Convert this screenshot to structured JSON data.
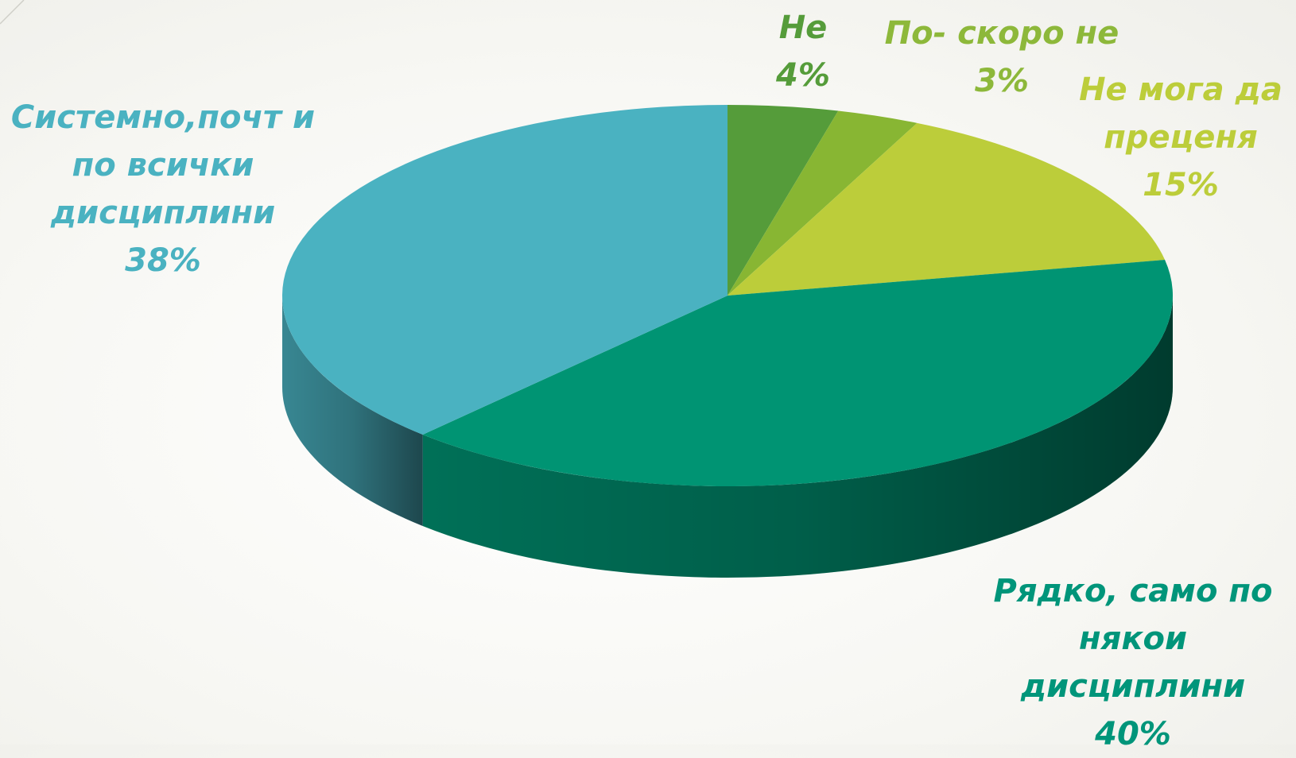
{
  "chart_data": {
    "type": "pie",
    "categories": [
      "Не",
      "По- скоро не",
      "Не мога да преценя",
      "Рядко, само по някои дисциплини",
      "Системно,почт и по всички дисциплини"
    ],
    "values": [
      4,
      3,
      15,
      40,
      38
    ],
    "value_labels": [
      "4%",
      "3%",
      "15%",
      "40%",
      "38%"
    ],
    "colors": [
      "#559c3a",
      "#88b633",
      "#bccd3a",
      "#009473",
      "#4ab2c1"
    ]
  }
}
